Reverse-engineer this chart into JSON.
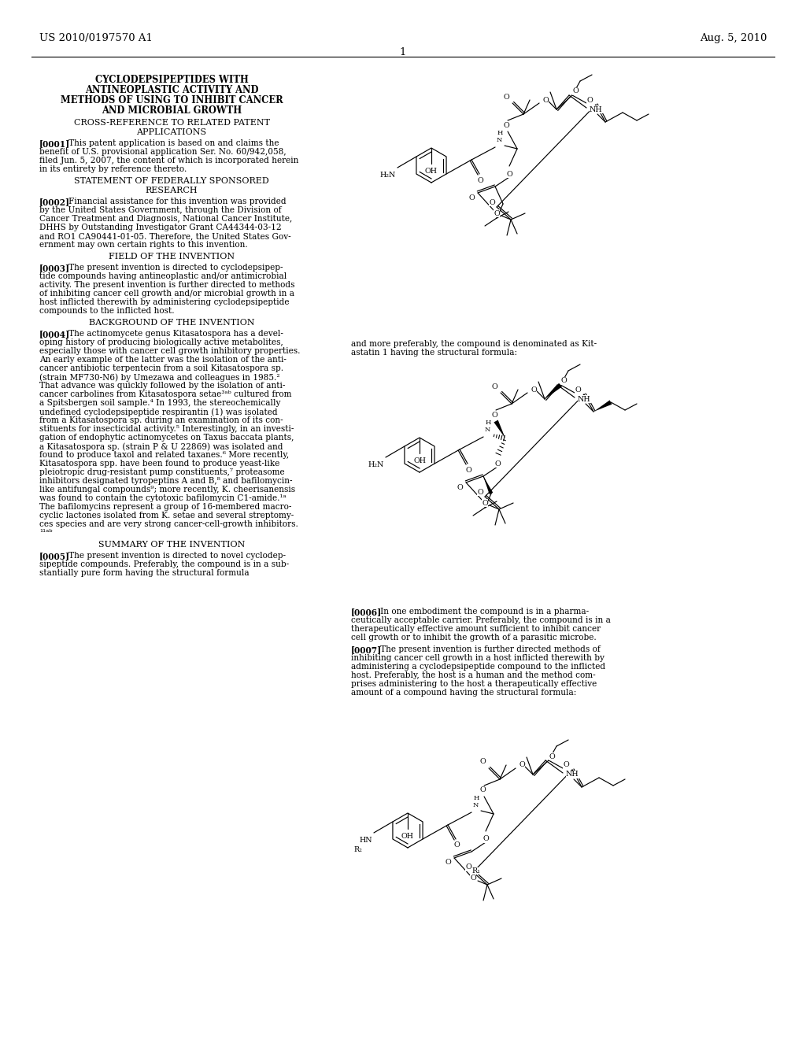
{
  "background_color": "#ffffff",
  "text_color": "#000000",
  "patent_number": "US 2010/0197570 A1",
  "date": "Aug. 5, 2010",
  "page_number": "1",
  "title": "CYCLODEPSIPEPTIDES WITH\nANTINEOPLASTIC ACTIVITY AND\nMETHODS OF USING TO INHIBIT CANCER\nAND MICROBIAL GROWTH",
  "s1_header": "CROSS-REFERENCE TO RELATED PATENT\nAPPLICATIONS",
  "p0001_lines": [
    "[0001]   This patent application is based on and claims the",
    "benefit of U.S. provisional application Ser. No. 60/942,058,",
    "filed Jun. 5, 2007, the content of which is incorporated herein",
    "in its entirety by reference thereto."
  ],
  "s2_header": "STATEMENT OF FEDERALLY SPONSORED\nRESEARCH",
  "p0002_lines": [
    "[0002]   Financial assistance for this invention was provided",
    "by the United States Government, through the Division of",
    "Cancer Treatment and Diagnosis, National Cancer Institute,",
    "DHHS by Outstanding Investigator Grant CA44344-03-12",
    "and RO1 CA90441-01-05. Therefore, the United States Gov-",
    "ernment may own certain rights to this invention."
  ],
  "s3_header": "FIELD OF THE INVENTION",
  "p0003_lines": [
    "[0003]   The present invention is directed to cyclodepsipep-",
    "tide compounds having antineoplastic and/or antimicrobial",
    "activity. The present invention is further directed to methods",
    "of inhibiting cancer cell growth and/or microbial growth in a",
    "host inflicted therewith by administering cyclodepsipeptide",
    "compounds to the inflicted host."
  ],
  "s4_header": "BACKGROUND OF THE INVENTION",
  "p0004_lines": [
    "[0004]   The actinomycete genus Kitasatospora has a devel-",
    "oping history of producing biologically active metabolites,",
    "especially those with cancer cell growth inhibitory properties.",
    "An early example of the latter was the isolation of the anti-",
    "cancer antibiotic terpentecin from a soil Kitasatospora sp.",
    "(strain MF730-N6) by Umezawa and colleagues in 1985.²",
    "That advance was quickly followed by the isolation of anti-",
    "cancer carbolines from Kitasatospora setae³ᵃᵇ cultured from",
    "a Spitsbergen soil sample.⁴ In 1993, the stereochemically",
    "undefined cyclodepsipeptide respirantin (1) was isolated",
    "from a Kitasatospora sp. during an examination of its con-",
    "stituents for insecticidal activity.⁵ Interestingly, in an investi-",
    "gation of endophytic actinomycetes on Taxus baccata plants,",
    "a Kitasatospora sp. (strain P & U 22869) was isolated and",
    "found to produce taxol and related taxanes.⁶ More recently,",
    "Kitasatospora spp. have been found to produce yeast-like",
    "pleiotropic drug-resistant pump constituents,⁷ proteasome",
    "inhibitors designated tyropeptins A and B,⁸ and bafilomycin-",
    "like antifungal compounds⁹; more recently, K. cheerisanensis",
    "was found to contain the cytotoxic bafilomycin C1-amide.¹ᵃ",
    "The bafilomycins represent a group of 16-membered macro-",
    "cyclic lactones isolated from K. setae and several streptomy-",
    "ces species and are very strong cancer-cell-growth inhibitors.",
    "¹¹ᵃᵇ"
  ],
  "s5_header": "SUMMARY OF THE INVENTION",
  "p0005_lines": [
    "[0005]   The present invention is directed to novel cyclodep-",
    "sipeptide compounds. Preferably, the compound is in a sub-",
    "stantially pure form having the structural formula"
  ],
  "right_text1_lines": [
    "and more preferably, the compound is denominated as Kit-",
    "astatin 1 having the structural formula:"
  ],
  "p0006_lines": [
    "[0006]   In one embodiment the compound is in a pharma-",
    "ceutically acceptable carrier. Preferably, the compound is in a",
    "therapeutically effective amount sufficient to inhibit cancer",
    "cell growth or to inhibit the growth of a parasitic microbe."
  ],
  "p0007_lines": [
    "[0007]   The present invention is further directed methods of",
    "inhibiting cancer cell growth in a host inflicted therewith by",
    "administering a cyclodepsipeptide compound to the inflicted",
    "host. Preferably, the host is a human and the method com-",
    "prises administering to the host a therapeutically effective",
    "amount of a compound having the structural formula:"
  ]
}
